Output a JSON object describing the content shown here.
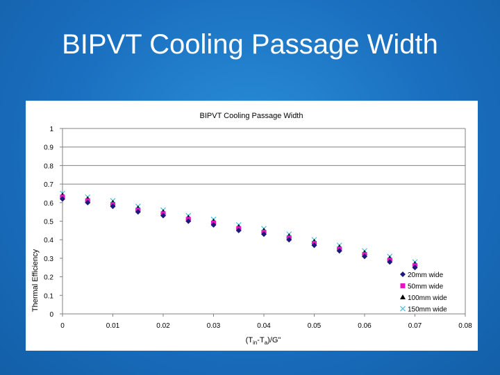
{
  "slide": {
    "title": "BIPVT Cooling Passage Width"
  },
  "chart_data": {
    "type": "scatter",
    "title": "BIPVT Cooling Passage Width",
    "xlabel_parts": [
      "(T",
      "in",
      "-T",
      "a",
      ")/G\""
    ],
    "ylabel": "Thermal Efficiency",
    "xlim": [
      0,
      0.08
    ],
    "ylim": [
      0,
      1
    ],
    "xticks": [
      "0",
      "0.01",
      "0.02",
      "0.03",
      "0.04",
      "0.05",
      "0.06",
      "0.07",
      "0.08"
    ],
    "yticks": [
      "0",
      "0.1",
      "0.2",
      "0.3",
      "0.4",
      "0.5",
      "0.6",
      "0.7",
      "0.8",
      "0.9",
      "1"
    ],
    "grid": "major horizontal gridlines at 0.7, 0.8, 0.9, 1",
    "legend_position": "bottom-right",
    "x": [
      0,
      0.005,
      0.01,
      0.015,
      0.02,
      0.025,
      0.03,
      0.035,
      0.04,
      0.045,
      0.05,
      0.055,
      0.06,
      0.065,
      0.07
    ],
    "series": [
      {
        "name": "20mm wide",
        "marker": "diamond",
        "color": "#1a1a7a",
        "values": [
          0.62,
          0.6,
          0.58,
          0.55,
          0.53,
          0.5,
          0.48,
          0.45,
          0.43,
          0.4,
          0.37,
          0.34,
          0.31,
          0.28,
          0.25
        ]
      },
      {
        "name": "50mm wide",
        "marker": "square",
        "color": "#e815c8",
        "values": [
          0.63,
          0.61,
          0.59,
          0.56,
          0.54,
          0.51,
          0.49,
          0.46,
          0.44,
          0.41,
          0.38,
          0.35,
          0.32,
          0.29,
          0.26
        ]
      },
      {
        "name": "100mm wide",
        "marker": "triangle",
        "color": "#000000",
        "values": [
          0.64,
          0.62,
          0.6,
          0.57,
          0.55,
          0.52,
          0.5,
          0.47,
          0.45,
          0.42,
          0.39,
          0.36,
          0.33,
          0.3,
          0.27
        ]
      },
      {
        "name": "150mm wide",
        "marker": "x",
        "color": "#4fc3e6",
        "values": [
          0.65,
          0.63,
          0.61,
          0.58,
          0.56,
          0.53,
          0.51,
          0.48,
          0.46,
          0.43,
          0.4,
          0.37,
          0.34,
          0.31,
          0.28
        ]
      }
    ]
  }
}
